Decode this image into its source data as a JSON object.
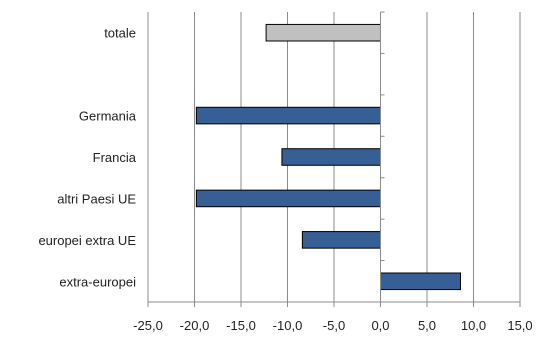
{
  "chart_data": {
    "type": "bar",
    "orientation": "horizontal",
    "categories": [
      "totale",
      "",
      "Germania",
      "Francia",
      "altri Paesi UE",
      "europei extra UE",
      "extra-europei"
    ],
    "values": [
      -12.3,
      null,
      -19.8,
      -10.6,
      -19.8,
      -8.4,
      8.6
    ],
    "bar_colors": [
      "#c0c0c0",
      null,
      "#365f96",
      "#365f96",
      "#365f96",
      "#365f96",
      "#365f96"
    ],
    "bar_stroke": "#000000",
    "xlim": [
      -25,
      15
    ],
    "xticks": [
      -25,
      -20,
      -15,
      -10,
      -5,
      0,
      5,
      10,
      15
    ],
    "xtick_labels": [
      "-25,0",
      "-20,0",
      "-15,0",
      "-10,0",
      "-5,0",
      "0,0",
      "5,0",
      "10,0",
      "15,0"
    ],
    "grid": "vertical",
    "grid_color": "#8c8c8c",
    "legend": "none",
    "title": "",
    "xlabel": "",
    "ylabel": ""
  }
}
